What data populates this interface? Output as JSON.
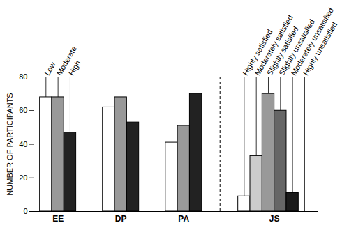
{
  "chart_data": {
    "type": "bar",
    "categories": [
      "EE",
      "DP",
      "PA",
      "JS"
    ],
    "series": [
      {
        "name": "Low",
        "color": "#ffffff",
        "values": [
          68,
          62,
          41,
          null
        ]
      },
      {
        "name": "Moderate",
        "color": "#999999",
        "values": [
          68,
          68,
          51,
          null
        ]
      },
      {
        "name": "High",
        "color": "#222222",
        "values": [
          47,
          53,
          70,
          null
        ]
      },
      {
        "name": "Highly satisfied",
        "color": "#ffffff",
        "values": [
          null,
          null,
          null,
          9
        ]
      },
      {
        "name": "Moderately satisfied",
        "color": "#cccccc",
        "values": [
          null,
          null,
          null,
          33
        ]
      },
      {
        "name": "Slightly satisfied",
        "color": "#999999",
        "values": [
          null,
          null,
          null,
          70
        ]
      },
      {
        "name": "Slightly unsatisfied",
        "color": "#666666",
        "values": [
          null,
          null,
          null,
          60
        ]
      },
      {
        "name": "Moderately unsatisfied",
        "color": "#1a1a1a",
        "values": [
          null,
          null,
          null,
          11
        ]
      },
      {
        "name": "Highly unsatisfied",
        "color": "#ffffff",
        "values": [
          null,
          null,
          null,
          0
        ]
      }
    ],
    "ylabel": "NUMBER OF PARTICIPANTS",
    "ylim": [
      0,
      80
    ],
    "yticks": [
      0,
      20,
      40,
      60,
      80
    ]
  }
}
